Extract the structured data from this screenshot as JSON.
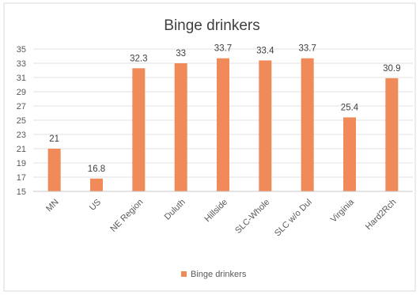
{
  "chart_data": {
    "type": "bar",
    "title": "Binge drinkers",
    "categories": [
      "MN",
      "US",
      "NE Region",
      "Duluth",
      "Hillside",
      "SLC-Whole",
      "SLC w/o Dul",
      "Virginia",
      "Hard2Rch"
    ],
    "series": [
      {
        "name": "Binge drinkers",
        "values": [
          21,
          16.8,
          32.3,
          33,
          33.7,
          33.4,
          33.7,
          25.4,
          30.9
        ],
        "data_labels": [
          "21",
          "16.8",
          "32.3",
          "33",
          "33.7",
          "33.4",
          "33.7",
          "25.4",
          "30.9"
        ],
        "color": "#f08a58"
      }
    ],
    "ylim": [
      15,
      35
    ],
    "yticks": [
      15,
      17,
      19,
      21,
      23,
      25,
      27,
      29,
      31,
      33,
      35
    ],
    "xlabel": "",
    "ylabel": "",
    "grid": true,
    "legend_position": "bottom"
  }
}
